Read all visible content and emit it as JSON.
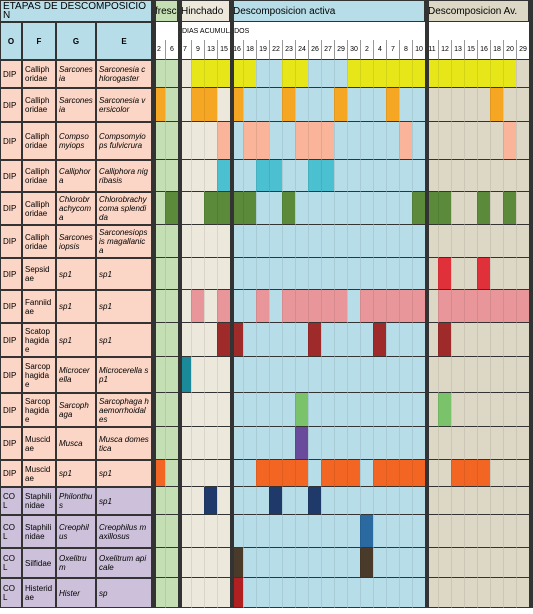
{
  "header": {
    "title": "ETAPAS DE DESCOMPOSICIÓN",
    "stages": [
      "fresco",
      "Hinchado",
      "Descomposicion activa",
      "Descomposicion Av."
    ],
    "columns": [
      "O",
      "F",
      "G",
      "E"
    ],
    "days_label": "DIAS ACUMULADOS",
    "days": [
      2,
      6,
      7,
      9,
      13,
      15,
      16,
      18,
      19,
      22,
      23,
      24,
      26,
      27,
      29,
      30,
      2,
      4,
      7,
      8,
      10,
      11,
      12,
      13,
      15,
      16,
      18,
      20,
      29
    ]
  },
  "rows": [
    [
      "DIP",
      "Calliphoridae",
      "Sarconesia",
      "Sarconesia chlorogaster"
    ],
    [
      "DIP",
      "Calliphoridae",
      "Sarconesia",
      "Sarconesia versicolor"
    ],
    [
      "DIP",
      "Calliphoridae",
      "Compsomyiops",
      "Compsomyiops fulvicrura"
    ],
    [
      "DIP",
      "Calliphoridae",
      "Calliphora",
      "Calliphora nigribasis"
    ],
    [
      "DIP",
      "Calliphoridae",
      "Chlorobrachycoma",
      "Chlorobrachycoma splendida"
    ],
    [
      "DIP",
      "Calliphoridae",
      "Sarconesiopsis",
      "Sarconesiopsis magallanica"
    ],
    [
      "DIP",
      "Sepsidae",
      "sp1",
      "sp1"
    ],
    [
      "DIP",
      "Fanniidae",
      "sp1",
      "sp1"
    ],
    [
      "DIP",
      "Scatophagidae",
      "sp1",
      "sp1"
    ],
    [
      "DIP",
      "Sarcophagidae",
      "Microcerella",
      "Microcerella sp1"
    ],
    [
      "DIP",
      "Sarcophagidae",
      "Sarcophaga",
      "Sarcophaga haemorrhoidales"
    ],
    [
      "DIP",
      "Muscidae",
      "Musca",
      "Musca domestica"
    ],
    [
      "DIP",
      "Muscidae",
      "sp1",
      "sp1"
    ],
    [
      "COL",
      "Staphilinidae",
      "Philonthus",
      "sp1"
    ],
    [
      "COL",
      "Staphilinidae",
      "Creophilus",
      "Creophilus maxillosus"
    ],
    [
      "COL",
      "Silfidae",
      "Oxelitrum",
      "Oxelitrum apicale"
    ],
    [
      "COL",
      "Histeridae",
      "Hister",
      "sp"
    ]
  ]
}
